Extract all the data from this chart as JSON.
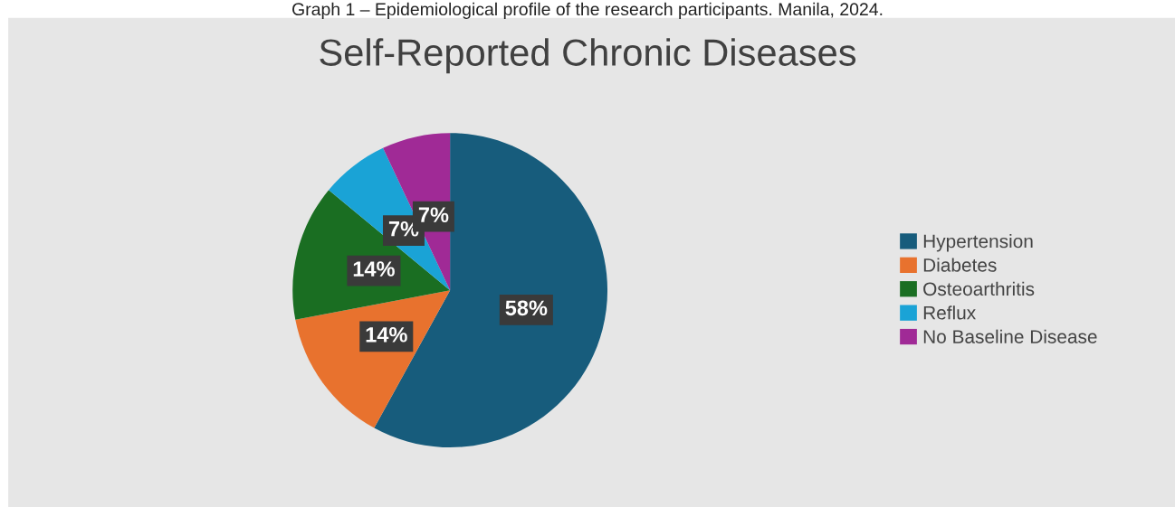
{
  "chart_data": {
    "type": "pie",
    "title": "Self-Reported Chronic Diseases",
    "annotations": [
      "Graph 1 – Epidemiological profile of the research participants. Manila, 2024."
    ],
    "categories": [
      "Hypertension",
      "Diabetes",
      "Osteoarthritis",
      "Reflux",
      "No Baseline Disease"
    ],
    "values": [
      58,
      14,
      14,
      7,
      7
    ],
    "colors": [
      "#175c7c",
      "#e8722e",
      "#1a6e22",
      "#1aa3d6",
      "#a02a96"
    ],
    "value_labels": [
      "58%",
      "14%",
      "14%",
      "7%",
      "7%"
    ],
    "legend": "right"
  }
}
